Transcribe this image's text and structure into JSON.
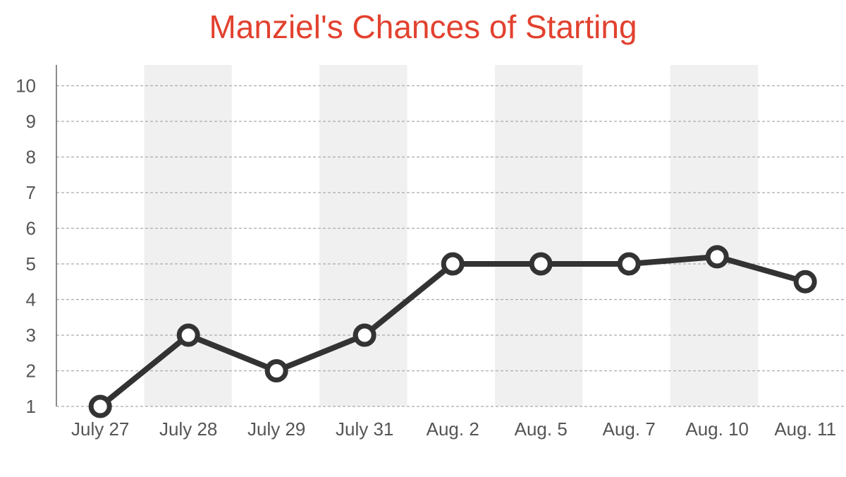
{
  "chart_data": {
    "type": "line",
    "title": "Manziel's Chances of Starting",
    "xlabel": "",
    "ylabel": "",
    "categories": [
      "July 27",
      "July 28",
      "July 29",
      "July 31",
      "Aug. 2",
      "Aug. 5",
      "Aug. 7",
      "Aug. 10",
      "Aug. 11"
    ],
    "series": [
      {
        "values": [
          1,
          3,
          2,
          3,
          5,
          5,
          5,
          5.2,
          4.5
        ]
      }
    ],
    "ylim": [
      1,
      10.6
    ],
    "yticks": [
      "1",
      "2",
      "3",
      "4",
      "5",
      "6",
      "7",
      "8",
      "9",
      "10"
    ],
    "grid": true,
    "colors": {
      "title": "#e2412f",
      "line": "#333333",
      "marker_fill": "#ffffff",
      "band": "#f0f0f0",
      "grid": "#aaaaaa",
      "tick_text": "#555555"
    }
  }
}
